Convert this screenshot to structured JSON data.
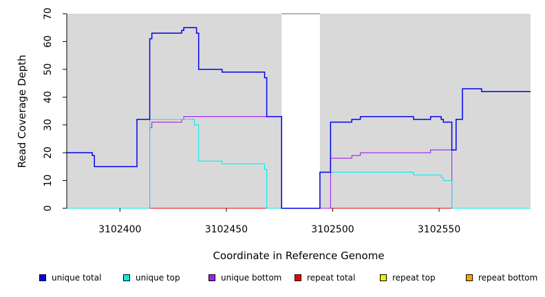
{
  "chart_data": {
    "type": "line",
    "xlabel": "Coordinate in Reference Genome",
    "ylabel": "Read Coverage Depth",
    "xlim": [
      3102375,
      3102593
    ],
    "ylim": [
      0,
      70
    ],
    "x_ticks": [
      3102400,
      3102450,
      3102500,
      3102550
    ],
    "y_ticks": [
      0,
      10,
      20,
      30,
      40,
      50,
      60,
      70
    ],
    "gap_region": [
      3102476,
      3102494
    ],
    "background": "#d9d9d9",
    "series": [
      {
        "name": "unique total",
        "color": "#0000ee",
        "points": [
          [
            3102375,
            20
          ],
          [
            3102387,
            20
          ],
          [
            3102387,
            19
          ],
          [
            3102388,
            19
          ],
          [
            3102388,
            15
          ],
          [
            3102408,
            15
          ],
          [
            3102408,
            32
          ],
          [
            3102414,
            32
          ],
          [
            3102414,
            61
          ],
          [
            3102415,
            61
          ],
          [
            3102415,
            63
          ],
          [
            3102429,
            63
          ],
          [
            3102429,
            64
          ],
          [
            3102430,
            64
          ],
          [
            3102430,
            65
          ],
          [
            3102436,
            65
          ],
          [
            3102436,
            63
          ],
          [
            3102437,
            63
          ],
          [
            3102437,
            50
          ],
          [
            3102448,
            50
          ],
          [
            3102448,
            49
          ],
          [
            3102468,
            49
          ],
          [
            3102468,
            47
          ],
          [
            3102469,
            47
          ],
          [
            3102469,
            33
          ],
          [
            3102476,
            33
          ],
          [
            3102476,
            0
          ],
          [
            3102494,
            0
          ],
          [
            3102494,
            13
          ],
          [
            3102499,
            13
          ],
          [
            3102499,
            31
          ],
          [
            3102509,
            31
          ],
          [
            3102509,
            32
          ],
          [
            3102513,
            32
          ],
          [
            3102513,
            33
          ],
          [
            3102538,
            33
          ],
          [
            3102538,
            32
          ],
          [
            3102546,
            32
          ],
          [
            3102546,
            33
          ],
          [
            3102551,
            33
          ],
          [
            3102551,
            32
          ],
          [
            3102552,
            32
          ],
          [
            3102552,
            31
          ],
          [
            3102556,
            31
          ],
          [
            3102556,
            21
          ],
          [
            3102558,
            21
          ],
          [
            3102558,
            32
          ],
          [
            3102561,
            32
          ],
          [
            3102561,
            43
          ],
          [
            3102570,
            43
          ],
          [
            3102570,
            42
          ],
          [
            3102593,
            42
          ]
        ]
      },
      {
        "name": "unique top",
        "color": "#00eeee",
        "points": [
          [
            3102375,
            0
          ],
          [
            3102414,
            0
          ],
          [
            3102414,
            32
          ],
          [
            3102435,
            32
          ],
          [
            3102435,
            30
          ],
          [
            3102437,
            30
          ],
          [
            3102437,
            17
          ],
          [
            3102448,
            17
          ],
          [
            3102448,
            16
          ],
          [
            3102468,
            16
          ],
          [
            3102468,
            14
          ],
          [
            3102469,
            14
          ],
          [
            3102469,
            0
          ],
          [
            3102494,
            0
          ],
          [
            3102494,
            13
          ],
          [
            3102538,
            13
          ],
          [
            3102538,
            12
          ],
          [
            3102551,
            12
          ],
          [
            3102551,
            11
          ],
          [
            3102552,
            11
          ],
          [
            3102552,
            10
          ],
          [
            3102556,
            10
          ],
          [
            3102556,
            0
          ],
          [
            3102593,
            0
          ]
        ]
      },
      {
        "name": "unique bottom",
        "color": "#a020f0",
        "points": [
          [
            3102375,
            0
          ],
          [
            3102414,
            0
          ],
          [
            3102414,
            29
          ],
          [
            3102415,
            29
          ],
          [
            3102415,
            31
          ],
          [
            3102429,
            31
          ],
          [
            3102429,
            32
          ],
          [
            3102430,
            32
          ],
          [
            3102430,
            33
          ],
          [
            3102476,
            33
          ],
          [
            3102476,
            0
          ],
          [
            3102499,
            0
          ],
          [
            3102499,
            18
          ],
          [
            3102509,
            18
          ],
          [
            3102509,
            19
          ],
          [
            3102513,
            19
          ],
          [
            3102513,
            20
          ],
          [
            3102546,
            20
          ],
          [
            3102546,
            21
          ],
          [
            3102556,
            21
          ],
          [
            3102556,
            0
          ],
          [
            3102593,
            0
          ]
        ]
      },
      {
        "name": "repeat total",
        "color": "#ee0000",
        "points": [
          [
            3102375,
            0
          ],
          [
            3102593,
            0
          ]
        ]
      },
      {
        "name": "repeat top",
        "color": "#eeee00",
        "points": [
          [
            3102375,
            0
          ],
          [
            3102593,
            0
          ]
        ]
      },
      {
        "name": "repeat bottom",
        "color": "#ffa500",
        "points": [
          [
            3102375,
            0
          ],
          [
            3102593,
            0
          ]
        ]
      }
    ]
  }
}
